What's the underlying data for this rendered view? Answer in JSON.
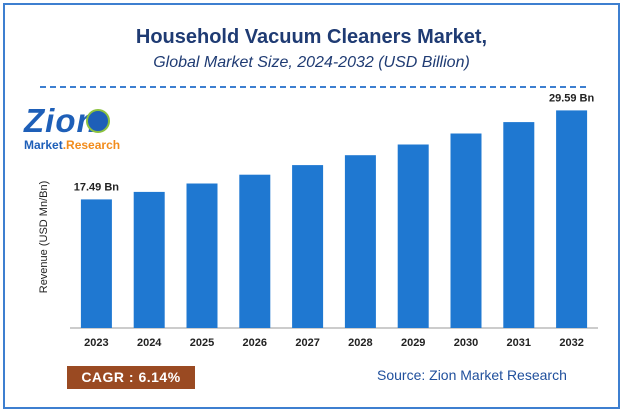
{
  "header": {
    "title": "Household Vacuum Cleaners Market,",
    "subtitle": "Global Market Size, 2024-2032 (USD Billion)"
  },
  "logo": {
    "name": "Zion",
    "subtitle_main": "Market",
    "subtitle_sep": ".",
    "subtitle_accent": "Research"
  },
  "footer": {
    "cagr": "CAGR : 6.14%",
    "source": "Source: Zion Market Research"
  },
  "colors": {
    "bar": "#1f78d1",
    "title": "#1f3b73",
    "cagr_bg": "#9a4a22",
    "border": "#3d7fd0"
  },
  "chart_data": {
    "type": "bar",
    "categories": [
      "2023",
      "2024",
      "2025",
      "2026",
      "2027",
      "2028",
      "2029",
      "2030",
      "2031",
      "2032"
    ],
    "values": [
      17.49,
      18.5,
      19.65,
      20.85,
      22.15,
      23.5,
      24.95,
      26.45,
      28.0,
      29.59
    ],
    "data_labels": [
      {
        "index": 0,
        "text": "17.49 Bn"
      },
      {
        "index": 9,
        "text": "29.59 Bn"
      }
    ],
    "title": "Household Vacuum Cleaners Market,",
    "subtitle": "Global Market Size, 2024-2032 (USD Billion)",
    "xlabel": "",
    "ylabel": "Revenue (USD Mn/Bn)",
    "ylim": [
      0,
      31
    ],
    "grid": false,
    "legend": "none"
  }
}
